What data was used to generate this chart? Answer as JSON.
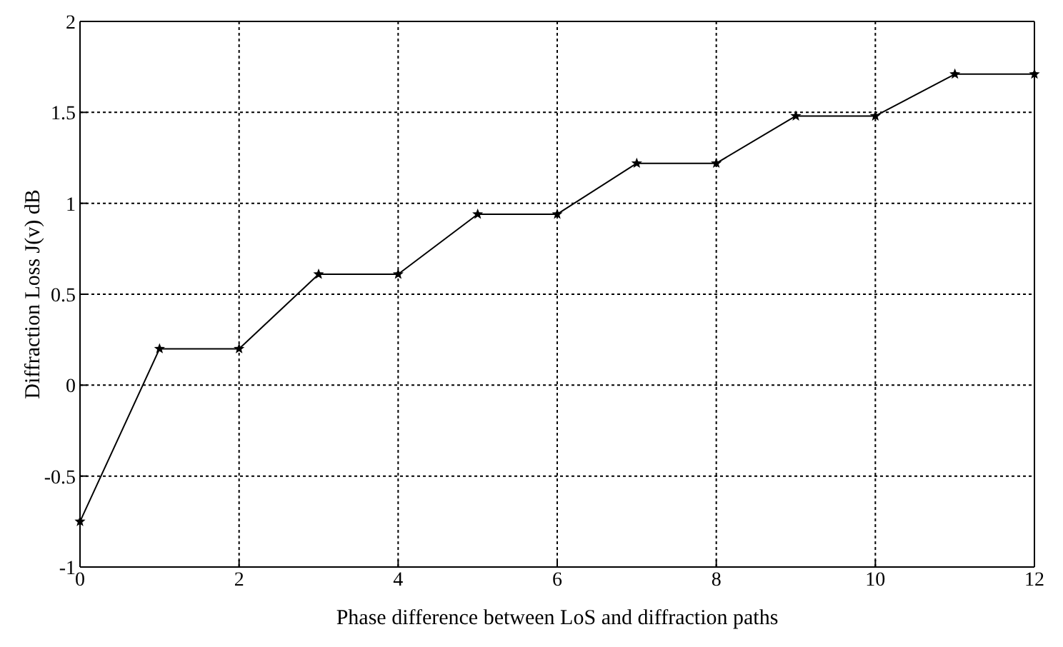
{
  "chart_data": {
    "type": "line",
    "xlabel": "Phase difference between LoS and diffraction paths",
    "ylabel": "Diffraction Loss J(v) dB",
    "x": [
      0,
      1,
      2,
      3,
      4,
      5,
      6,
      7,
      8,
      9,
      10,
      11,
      12
    ],
    "series": [
      {
        "color": "#000000",
        "values": [
          -0.75,
          0.2,
          0.2,
          0.61,
          0.61,
          0.94,
          0.94,
          1.22,
          1.22,
          1.48,
          1.48,
          1.71,
          1.71
        ]
      }
    ],
    "xlim": [
      0,
      12
    ],
    "xticks": [
      0,
      2,
      4,
      6,
      8,
      10,
      12
    ],
    "ylim": [
      -1,
      2
    ],
    "yticks": [
      -1,
      -0.5,
      0,
      0.5,
      1,
      1.5,
      2
    ],
    "grid": true,
    "legend": false,
    "marker": "star",
    "line_style": "solid"
  }
}
